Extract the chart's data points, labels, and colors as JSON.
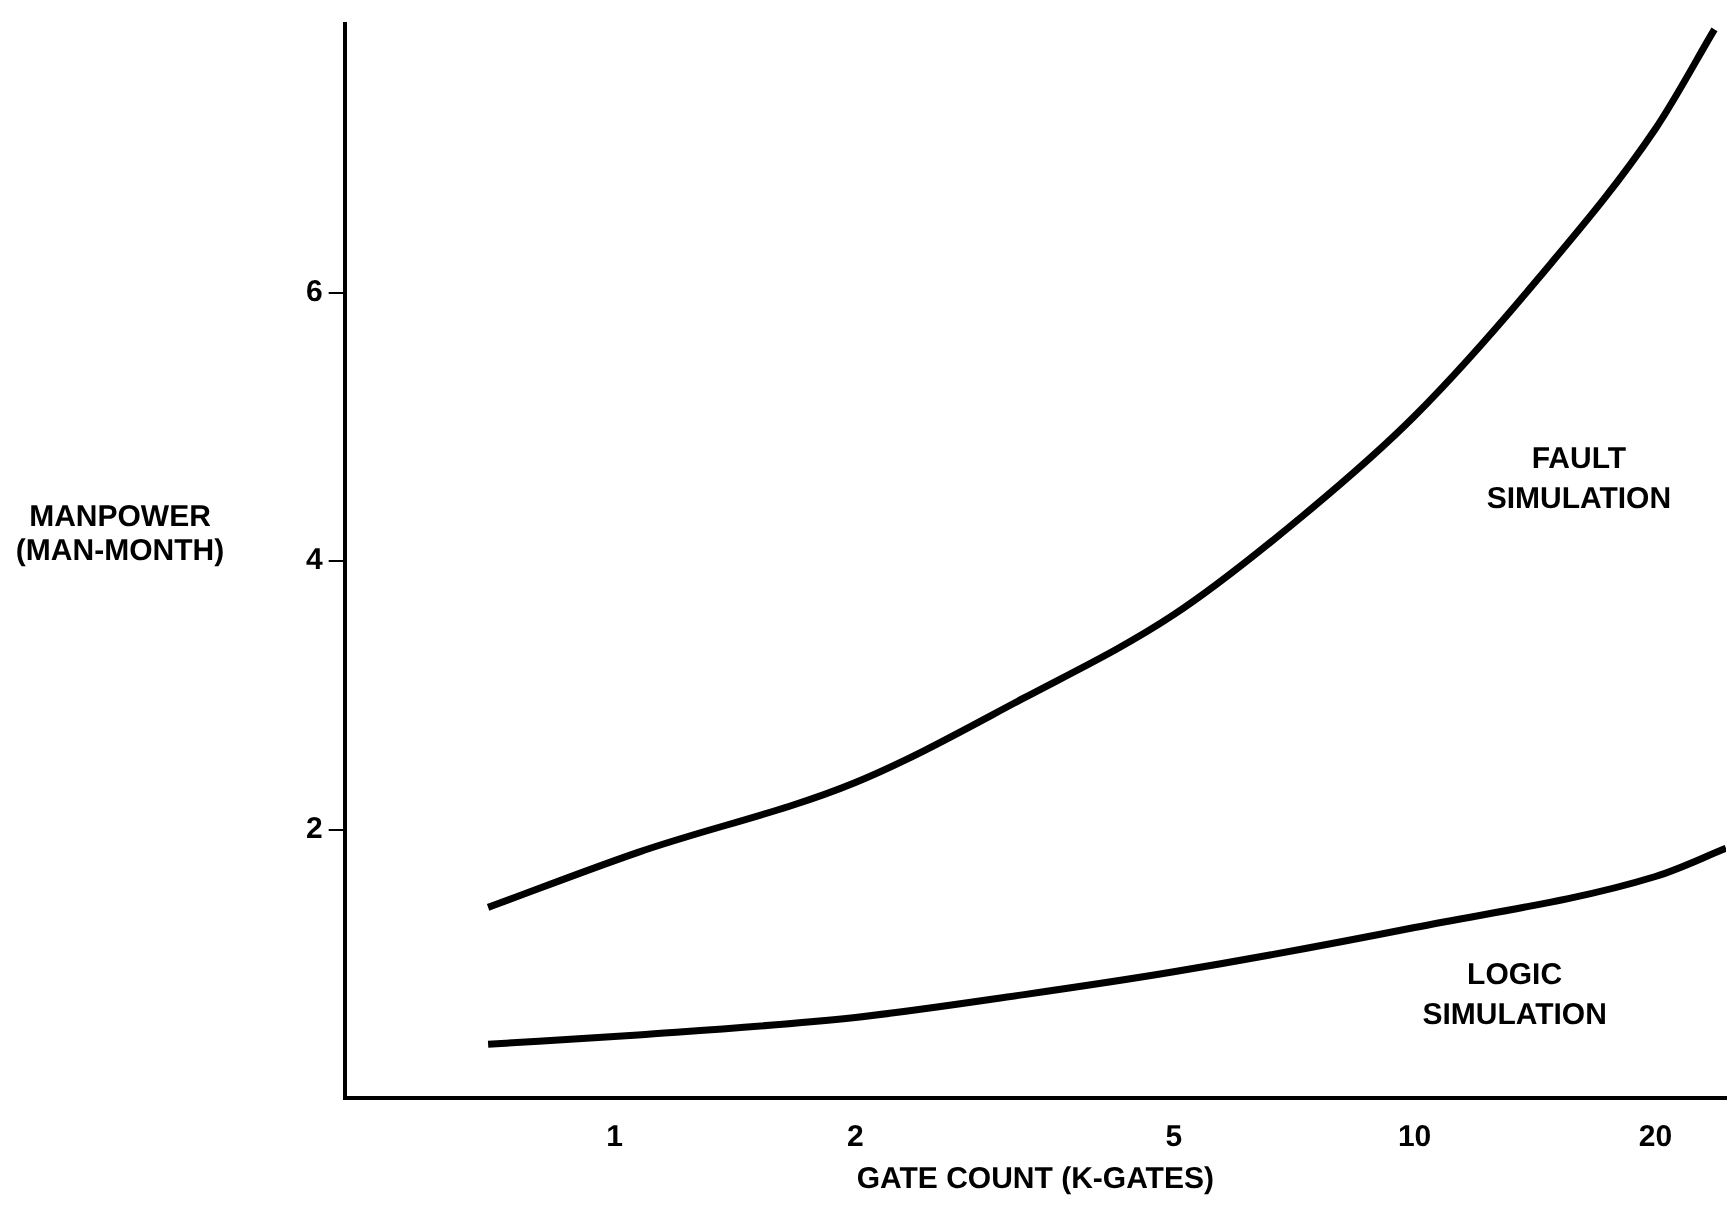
{
  "chart_data": {
    "type": "line",
    "xlabel": "GATE COUNT (K-GATES)",
    "ylabel": "MANPOWER\n(MAN-MONTH)",
    "log": "x",
    "xlim": [
      0.46,
      24.5
    ],
    "xticks": [
      1,
      2,
      5,
      10,
      20
    ],
    "ylim": [
      0,
      8
    ],
    "yticks": [
      2,
      4,
      6
    ],
    "grid": false,
    "legend": false,
    "marker": "none",
    "line_style": "solid",
    "series": [
      {
        "name": "LOGIC SIMULATION",
        "type": "line",
        "color": "#000000",
        "x": [
          0.695,
          1.07,
          2,
          3.25,
          5,
          10,
          20,
          24.5
        ],
        "values": [
          0.4,
          0.47,
          0.6,
          0.77,
          0.94,
          1.27,
          1.65,
          1.86
        ]
      },
      {
        "name": "FAULT SIMULATION",
        "type": "line",
        "color": "#000000",
        "x": [
          0.695,
          1.07,
          2,
          3.25,
          5,
          7.26,
          10,
          14.3,
          20,
          23.7
        ],
        "values": [
          1.42,
          1.83,
          2.35,
          2.98,
          3.6,
          4.34,
          5.08,
          6.11,
          7.22,
          7.96
        ]
      }
    ]
  }
}
